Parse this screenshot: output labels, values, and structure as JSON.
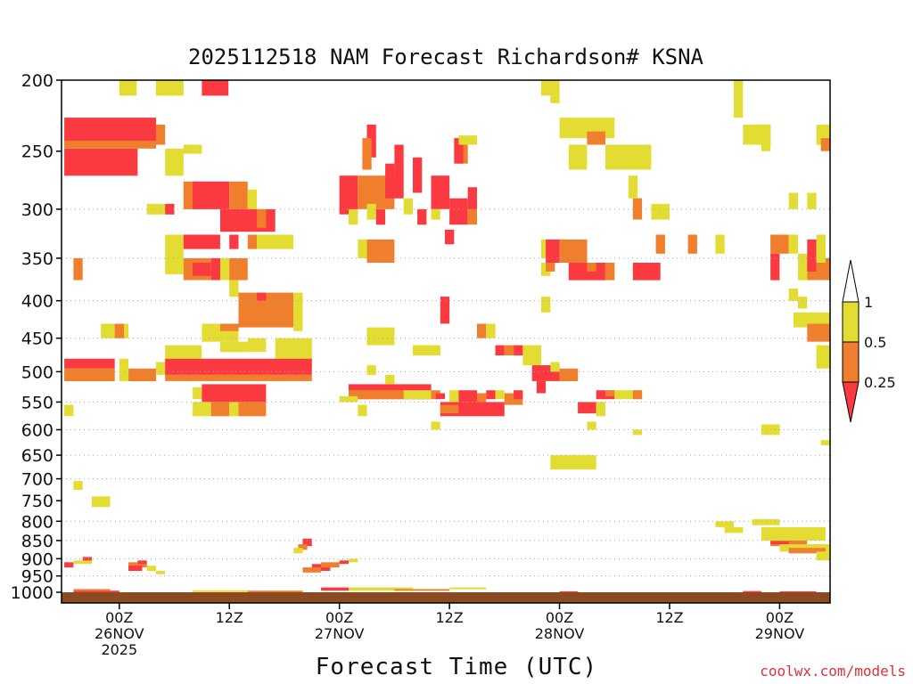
{
  "title": "2025112518 NAM Forecast Richardson# KSNA",
  "x_axis_title": "Forecast Time (UTC)",
  "credit": "coolwx.com/models",
  "chart_data": {
    "type": "heatmap",
    "title": "2025112518 NAM Forecast Richardson# KSNA",
    "xlabel": "Forecast Time (UTC)",
    "ylabel": "",
    "y_scale": "log",
    "y_reversed": true,
    "ylim": [
      1000,
      200
    ],
    "xlim": [
      -6.3,
      77.5
    ],
    "y_ticks": [
      200,
      250,
      300,
      350,
      400,
      450,
      500,
      550,
      600,
      650,
      700,
      750,
      800,
      850,
      900,
      950,
      1000
    ],
    "grid_levels": [
      300,
      350,
      400,
      450,
      500,
      550,
      600,
      650,
      700,
      800,
      850,
      900,
      950
    ],
    "x_ticks": [
      {
        "hour": 0,
        "label": [
          "00Z",
          "26NOV",
          "2025"
        ]
      },
      {
        "hour": 12,
        "label": [
          "12Z"
        ]
      },
      {
        "hour": 24,
        "label": [
          "00Z",
          "27NOV"
        ]
      },
      {
        "hour": 36,
        "label": [
          "12Z"
        ]
      },
      {
        "hour": 48,
        "label": [
          "00Z",
          "28NOV"
        ]
      },
      {
        "hour": 60,
        "label": [
          "12Z"
        ]
      },
      {
        "hour": 72,
        "label": [
          "00Z",
          "29NOV"
        ]
      }
    ],
    "colorbar": {
      "labels": [
        "1",
        "0.5",
        "0.25"
      ],
      "bins": [
        {
          "range": "0.5 to 1",
          "color": "#e3dc32"
        },
        {
          "range": "0.25 to 0.5",
          "color": "#ef7f2d"
        },
        {
          "range": "< 0.25",
          "color": "#fa3a40"
        }
      ]
    },
    "colors": {
      "yellow": "#e3dc32",
      "orange": "#ef7f2d",
      "red": "#fa3a40",
      "ground": "#8b4a22"
    },
    "bins_legend": {
      "Y": "0.5 to 1",
      "O": "0.25 to 0.5",
      "R": "< 0.25"
    },
    "cells": [
      [
        "Y",
        0.0,
        1.9,
        210,
        200
      ],
      [
        "Y",
        4.0,
        7.0,
        210,
        200
      ],
      [
        "R",
        9.0,
        11.9,
        210,
        200
      ],
      [
        "R",
        -6.0,
        4.0,
        245,
        225
      ],
      [
        "O",
        -6.0,
        4.0,
        248,
        242
      ],
      [
        "R",
        -6.0,
        2.0,
        270,
        248
      ],
      [
        "O",
        4.0,
        5.0,
        245,
        230
      ],
      [
        "Y",
        5.0,
        7.0,
        270,
        248
      ],
      [
        "Y",
        7.0,
        9.0,
        252,
        245
      ],
      [
        "O",
        7.0,
        9.0,
        300,
        275
      ],
      [
        "R",
        8.0,
        12.0,
        300,
        275
      ],
      [
        "O",
        12.0,
        14.0,
        300,
        275
      ],
      [
        "Y",
        14.0,
        15.0,
        300,
        282
      ],
      [
        "R",
        11.0,
        17.0,
        322,
        300
      ],
      [
        "O",
        15.0,
        16.0,
        318,
        300
      ],
      [
        "Y",
        3.0,
        5.0,
        305,
        295
      ],
      [
        "R",
        5.0,
        6.0,
        305,
        295
      ],
      [
        "Y",
        5.0,
        7.0,
        368,
        325
      ],
      [
        "R",
        7.0,
        11.0,
        340,
        325
      ],
      [
        "R",
        12.0,
        13.0,
        340,
        325
      ],
      [
        "O",
        14.0,
        15.0,
        340,
        325
      ],
      [
        "Y",
        15.0,
        19.0,
        340,
        325
      ],
      [
        "O",
        7.0,
        10.0,
        375,
        350
      ],
      [
        "R",
        8.0,
        10.0,
        370,
        355
      ],
      [
        "R",
        10.0,
        11.0,
        375,
        350
      ],
      [
        "Y",
        11.0,
        12.0,
        375,
        350
      ],
      [
        "O",
        12.0,
        14.0,
        375,
        350
      ],
      [
        "Y",
        12.0,
        13.0,
        395,
        375
      ],
      [
        "O",
        13.0,
        19.0,
        435,
        390
      ],
      [
        "R",
        15.0,
        16.0,
        400,
        390
      ],
      [
        "Y",
        19.0,
        20.0,
        440,
        390
      ],
      [
        "Y",
        9.0,
        13.0,
        455,
        430
      ],
      [
        "O",
        11.0,
        13.0,
        440,
        430
      ],
      [
        "Y",
        14.0,
        16.0,
        470,
        450
      ],
      [
        "Y",
        17.0,
        21.0,
        490,
        450
      ],
      [
        "Y",
        11.0,
        14.0,
        470,
        455
      ],
      [
        "Y",
        5.0,
        9.0,
        485,
        460
      ],
      [
        "Y",
        -2.0,
        1.0,
        450,
        430
      ],
      [
        "O",
        -0.5,
        0.5,
        450,
        430
      ],
      [
        "R",
        -6.0,
        -0.5,
        495,
        480
      ],
      [
        "O",
        -6.0,
        -0.5,
        515,
        495
      ],
      [
        "Y",
        0.0,
        1.0,
        515,
        480
      ],
      [
        "O",
        1.0,
        4.0,
        515,
        495
      ],
      [
        "Y",
        4.0,
        5.0,
        505,
        485
      ],
      [
        "R",
        5.0,
        21.0,
        505,
        480
      ],
      [
        "O",
        5.0,
        21.0,
        515,
        505
      ],
      [
        "Y",
        8.0,
        9.0,
        545,
        525
      ],
      [
        "R",
        9.0,
        16.0,
        550,
        520
      ],
      [
        "Y",
        8.0,
        10.0,
        575,
        550
      ],
      [
        "O",
        10.0,
        12.0,
        575,
        550
      ],
      [
        "Y",
        12.0,
        13.0,
        575,
        550
      ],
      [
        "O",
        13.0,
        16.0,
        575,
        550
      ],
      [
        "Y",
        -6.0,
        -5.0,
        575,
        555
      ],
      [
        "O",
        -5.0,
        -4.0,
        375,
        350
      ],
      [
        "R",
        24.0,
        26.0,
        305,
        270
      ],
      [
        "O",
        26.0,
        30.0,
        300,
        270
      ],
      [
        "R",
        27.0,
        28.0,
        255,
        230
      ],
      [
        "O",
        26.5,
        27.5,
        265,
        240
      ],
      [
        "R",
        29.0,
        30.0,
        290,
        260
      ],
      [
        "R",
        32.0,
        33.0,
        285,
        255
      ],
      [
        "R",
        34.0,
        36.0,
        300,
        270
      ],
      [
        "R",
        36.0,
        38.0,
        315,
        290
      ],
      [
        "O",
        38.0,
        39.0,
        315,
        290
      ],
      [
        "Y",
        25.0,
        26.0,
        315,
        300
      ],
      [
        "Y",
        27.0,
        28.0,
        310,
        295
      ],
      [
        "R",
        28.0,
        29.0,
        315,
        300
      ],
      [
        "R",
        32.5,
        33.5,
        315,
        300
      ],
      [
        "Y",
        34.0,
        35.0,
        310,
        300
      ],
      [
        "R",
        35.5,
        36.5,
        335,
        320
      ],
      [
        "O",
        27.0,
        30.0,
        355,
        330
      ],
      [
        "Y",
        26.0,
        27.0,
        350,
        330
      ],
      [
        "R",
        38.0,
        39.0,
        300,
        280
      ],
      [
        "O",
        37.0,
        38.0,
        260,
        240
      ],
      [
        "R",
        36.5,
        37.5,
        260,
        240
      ],
      [
        "Y",
        37.0,
        39.0,
        245,
        238
      ],
      [
        "R",
        30.0,
        31.0,
        290,
        245
      ],
      [
        "Y",
        31.0,
        32.0,
        305,
        290
      ],
      [
        "Y",
        27.0,
        30.0,
        460,
        435
      ],
      [
        "R",
        35.0,
        36.0,
        430,
        395
      ],
      [
        "O",
        39.0,
        40.0,
        450,
        430
      ],
      [
        "Y",
        40.0,
        41.0,
        450,
        430
      ],
      [
        "Y",
        32.0,
        35.0,
        475,
        460
      ],
      [
        "R",
        41.0,
        42.0,
        475,
        460
      ],
      [
        "O",
        42.0,
        43.0,
        475,
        460
      ],
      [
        "R",
        43.0,
        44.0,
        475,
        460
      ],
      [
        "Y",
        44.0,
        46.0,
        490,
        460
      ],
      [
        "R",
        25.0,
        34.0,
        545,
        520
      ],
      [
        "O",
        25.0,
        34.0,
        545,
        530
      ],
      [
        "Y",
        24.0,
        26.0,
        550,
        540
      ],
      [
        "Y",
        26.0,
        27.0,
        575,
        555
      ],
      [
        "Y",
        27.0,
        28.0,
        505,
        490
      ],
      [
        "Y",
        29.0,
        30.0,
        520,
        505
      ],
      [
        "Y",
        31.0,
        34.0,
        545,
        530
      ],
      [
        "O",
        34.0,
        35.0,
        545,
        530
      ],
      [
        "R",
        34.5,
        35.5,
        545,
        535
      ],
      [
        "Y",
        36.0,
        37.0,
        550,
        530
      ],
      [
        "R",
        37.0,
        39.0,
        550,
        530
      ],
      [
        "O",
        39.0,
        40.0,
        555,
        535
      ],
      [
        "R",
        40.0,
        41.0,
        545,
        530
      ],
      [
        "Y",
        41.0,
        42.0,
        545,
        530
      ],
      [
        "O",
        42.0,
        44.0,
        555,
        535
      ],
      [
        "R",
        43.0,
        44.0,
        545,
        530
      ],
      [
        "R",
        35.0,
        42.0,
        575,
        550
      ],
      [
        "O",
        35.0,
        37.0,
        570,
        555
      ],
      [
        "Y",
        34.0,
        35.0,
        600,
        585
      ],
      [
        "Y",
        46.0,
        47.0,
        415,
        395
      ],
      [
        "R",
        45.0,
        48.0,
        515,
        490
      ],
      [
        "O",
        48.0,
        50.0,
        515,
        495
      ],
      [
        "Y",
        47.0,
        48.0,
        500,
        485
      ],
      [
        "R",
        45.5,
        46.5,
        535,
        515
      ],
      [
        "Y",
        46.0,
        48.0,
        210,
        200
      ],
      [
        "Y",
        47.0,
        48.0,
        215,
        210
      ],
      [
        "Y",
        46.0,
        47.0,
        350,
        330
      ],
      [
        "R",
        46.5,
        48.0,
        355,
        330
      ],
      [
        "O",
        48.0,
        51.0,
        355,
        330
      ],
      [
        "Y",
        46.0,
        47.0,
        370,
        355
      ],
      [
        "O",
        46.5,
        47.5,
        365,
        355
      ],
      [
        "R",
        49.0,
        53.0,
        375,
        355
      ],
      [
        "O",
        51.0,
        52.0,
        365,
        355
      ],
      [
        "O",
        53.0,
        54.0,
        375,
        355
      ],
      [
        "Y",
        48.0,
        54.0,
        240,
        225
      ],
      [
        "O",
        51.0,
        53.0,
        245,
        235
      ],
      [
        "Y",
        49.0,
        51.0,
        265,
        245
      ],
      [
        "Y",
        53.0,
        58.0,
        265,
        245
      ],
      [
        "R",
        56.0,
        59.0,
        375,
        355
      ],
      [
        "R",
        52.0,
        54.0,
        545,
        530
      ],
      [
        "O",
        53.0,
        54.0,
        540,
        530
      ],
      [
        "Y",
        54.0,
        57.0,
        545,
        530
      ],
      [
        "O",
        56.0,
        57.0,
        545,
        530
      ],
      [
        "R",
        50.0,
        52.0,
        570,
        550
      ],
      [
        "Y",
        52.0,
        53.0,
        575,
        550
      ],
      [
        "Y",
        51.0,
        52.0,
        600,
        585
      ],
      [
        "Y",
        47.0,
        52.0,
        680,
        650
      ],
      [
        "Y",
        56.0,
        57.0,
        610,
        600
      ],
      [
        "O",
        56.0,
        57.0,
        310,
        290
      ],
      [
        "Y",
        55.5,
        56.5,
        290,
        270
      ],
      [
        "Y",
        58.0,
        60.0,
        310,
        295
      ],
      [
        "O",
        58.5,
        59.5,
        345,
        325
      ],
      [
        "O",
        62.0,
        63.0,
        345,
        325
      ],
      [
        "Y",
        65.0,
        66.0,
        345,
        325
      ],
      [
        "Y",
        67.0,
        68.0,
        225,
        200
      ],
      [
        "O",
        69.0,
        71.0,
        245,
        230
      ],
      [
        "Y",
        68.0,
        71.0,
        245,
        230
      ],
      [
        "Y",
        70.0,
        71.0,
        250,
        245
      ],
      [
        "O",
        71.0,
        73.0,
        345,
        325
      ],
      [
        "R",
        71.0,
        72.0,
        375,
        345
      ],
      [
        "Y",
        73.0,
        74.0,
        345,
        325
      ],
      [
        "Y",
        74.0,
        75.0,
        375,
        345
      ],
      [
        "O",
        75.0,
        77.5,
        375,
        350
      ],
      [
        "R",
        75.0,
        76.0,
        365,
        330
      ],
      [
        "Y",
        76.0,
        77.0,
        355,
        325
      ],
      [
        "Y",
        73.0,
        74.0,
        400,
        385
      ],
      [
        "Y",
        74.0,
        75.0,
        410,
        395
      ],
      [
        "Y",
        73.5,
        77.5,
        435,
        415
      ],
      [
        "O",
        75.0,
        77.5,
        455,
        430
      ],
      [
        "Y",
        76.0,
        77.5,
        495,
        460
      ],
      [
        "Y",
        76.0,
        77.5,
        245,
        230
      ],
      [
        "O",
        76.5,
        77.5,
        250,
        240
      ],
      [
        "Y",
        73.0,
        74.0,
        300,
        285
      ],
      [
        "Y",
        75.0,
        76.0,
        300,
        285
      ],
      [
        "Y",
        70.0,
        72.0,
        610,
        590
      ],
      [
        "Y",
        76.5,
        77.5,
        630,
        620
      ],
      [
        "Y",
        -5.0,
        -4.0,
        725,
        705
      ],
      [
        "Y",
        -3.0,
        -1.0,
        765,
        740
      ],
      [
        "Y",
        65.0,
        67.0,
        815,
        800
      ],
      [
        "Y",
        66.0,
        68.0,
        830,
        815
      ],
      [
        "Y",
        69.0,
        72.0,
        810,
        795
      ],
      [
        "Y",
        70.0,
        77.0,
        850,
        815
      ],
      [
        "O",
        71.0,
        75.0,
        865,
        850
      ],
      [
        "R",
        71.0,
        73.0,
        860,
        852
      ],
      [
        "Y",
        72.0,
        77.5,
        880,
        860
      ],
      [
        "O",
        73.0,
        77.0,
        885,
        870
      ],
      [
        "Y",
        76.0,
        77.5,
        905,
        880
      ],
      [
        "R",
        -6.0,
        -5.0,
        925,
        910
      ],
      [
        "Y",
        -5.0,
        -3.0,
        915,
        905
      ],
      [
        "R",
        -4.0,
        -3.0,
        905,
        895
      ],
      [
        "O",
        1.0,
        3.0,
        925,
        910
      ],
      [
        "R",
        1.0,
        2.5,
        935,
        920
      ],
      [
        "Y",
        3.0,
        4.0,
        935,
        920
      ],
      [
        "R",
        2.0,
        3.0,
        915,
        905
      ],
      [
        "Y",
        4.0,
        5.0,
        945,
        935
      ],
      [
        "R",
        20.0,
        21.0,
        865,
        845
      ],
      [
        "O",
        19.5,
        20.5,
        875,
        860
      ],
      [
        "Y",
        19.0,
        20.0,
        885,
        870
      ],
      [
        "R",
        21.0,
        23.0,
        935,
        915
      ],
      [
        "O",
        22.0,
        24.0,
        925,
        910
      ],
      [
        "R",
        24.0,
        25.0,
        915,
        905
      ],
      [
        "Y",
        25.0,
        26.0,
        910,
        900
      ],
      [
        "O",
        20.0,
        22.0,
        940,
        925
      ],
      [
        "Y",
        25.0,
        32.0,
        995,
        985
      ],
      [
        "R",
        -5.0,
        0.0,
        1000,
        995
      ],
      [
        "O",
        -5.0,
        -1.0,
        995,
        990
      ],
      [
        "Y",
        8.0,
        14.0,
        998,
        994
      ],
      [
        "O",
        14.0,
        20.0,
        1000,
        995
      ],
      [
        "R",
        22.0,
        25.0,
        995,
        985
      ],
      [
        "O",
        30.0,
        36.0,
        995,
        990
      ],
      [
        "Y",
        36.0,
        40.0,
        990,
        985
      ],
      [
        "R",
        48.0,
        50.0,
        1000,
        997
      ],
      [
        "R",
        68.0,
        70.0,
        1000,
        996
      ],
      [
        "R",
        72.0,
        76.0,
        1000,
        997
      ]
    ]
  }
}
